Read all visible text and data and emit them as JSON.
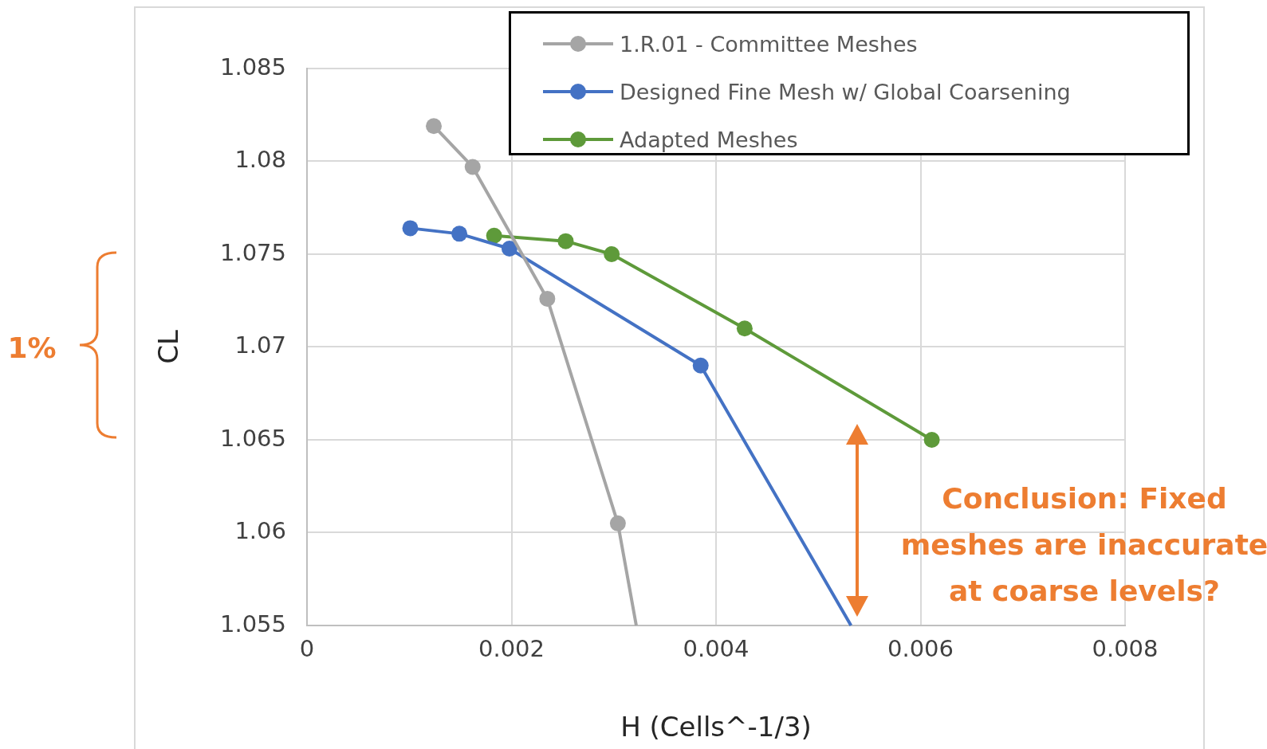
{
  "chart_data": {
    "type": "line",
    "xlabel": "H (Cells^-1/3)",
    "ylabel": "CL",
    "series": [
      {
        "name": "1.R.01 - Committee Meshes",
        "color": "#a5a5a5",
        "x": [
          0.00124,
          0.00162,
          0.00235,
          0.00304,
          0.00322
        ],
        "values": [
          1.0819,
          1.0797,
          1.0726,
          1.0605,
          1.055
        ]
      },
      {
        "name": "Designed Fine Mesh w/ Global Coarsening",
        "color": "#4472c4",
        "x": [
          0.00101,
          0.00149,
          0.00198,
          0.00385,
          0.00532
        ],
        "values": [
          1.0764,
          1.0761,
          1.0753,
          1.069,
          1.055
        ]
      },
      {
        "name": "Adapted Meshes",
        "color": "#5e9a3a",
        "x": [
          0.00183,
          0.00253,
          0.00298,
          0.00428,
          0.00611
        ],
        "values": [
          1.076,
          1.0757,
          1.075,
          1.071,
          1.065
        ]
      }
    ],
    "xlim": [
      0,
      0.008
    ],
    "xticks": [
      0,
      0.002,
      0.004,
      0.006,
      0.008
    ],
    "ylim": [
      1.055,
      1.085
    ],
    "yticks": [
      1.055,
      1.06,
      1.065,
      1.07,
      1.075,
      1.08,
      1.085
    ],
    "grid": true,
    "legend": "top right",
    "marker": "circle",
    "line_style": "solid",
    "annotations": [
      "1%",
      "Conclusion: Fixed meshes are inaccurate at coarse levels?"
    ]
  }
}
